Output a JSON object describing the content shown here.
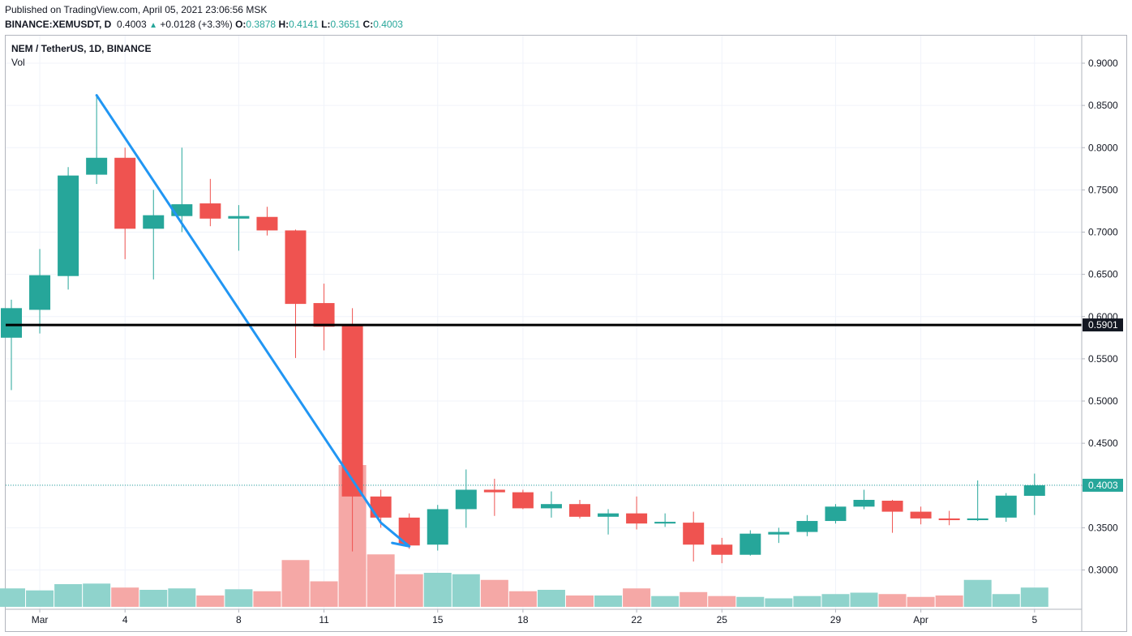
{
  "header": {
    "published": "Published on TradingView.com, April 05, 2021 23:06:56 MSK",
    "symbol": "BINANCE:XEMUSDT, D",
    "last": "0.4003",
    "change": "+0.0128 (+3.3%)",
    "o_label": "O:",
    "o": "0.3878",
    "h_label": "H:",
    "h": "0.4141",
    "l_label": "L:",
    "l": "0.3651",
    "c_label": "C:",
    "c": "0.4003"
  },
  "legend": {
    "series": "NEM / TetherUS, 1D, BINANCE",
    "volume": "Vol"
  },
  "colors": {
    "up": "#26a69a",
    "down": "#ef5350",
    "up_vol": "#8fd3cc",
    "down_vol": "#f5a8a6",
    "trendline": "#2196f3",
    "hline": "#000000",
    "grid": "#f0f3fa"
  },
  "chart_data": {
    "type": "candlestick",
    "ylim": [
      0.26,
      0.92
    ],
    "y_ticks": [
      "0.9000",
      "0.8500",
      "0.8000",
      "0.7500",
      "0.7000",
      "0.6500",
      "0.6000",
      "0.5500",
      "0.5000",
      "0.4500",
      "0.4000",
      "0.3500",
      "0.3000"
    ],
    "x_ticks": [
      {
        "label": "Mar",
        "index": 1
      },
      {
        "label": "4",
        "index": 4
      },
      {
        "label": "8",
        "index": 8
      },
      {
        "label": "11",
        "index": 11
      },
      {
        "label": "15",
        "index": 15
      },
      {
        "label": "18",
        "index": 18
      },
      {
        "label": "22",
        "index": 22
      },
      {
        "label": "25",
        "index": 25
      },
      {
        "label": "29",
        "index": 29
      },
      {
        "label": "Apr",
        "index": 32
      },
      {
        "label": "5",
        "index": 36
      }
    ],
    "candles": [
      {
        "date": "Feb 28",
        "o": 0.575,
        "h": 0.62,
        "l": 0.513,
        "c": 0.61,
        "v": 0.65
      },
      {
        "date": "Mar 1",
        "o": 0.608,
        "h": 0.68,
        "l": 0.58,
        "c": 0.649,
        "v": 0.58
      },
      {
        "date": "Mar 2",
        "o": 0.648,
        "h": 0.777,
        "l": 0.632,
        "c": 0.767,
        "v": 0.8
      },
      {
        "date": "Mar 3",
        "o": 0.768,
        "h": 0.862,
        "l": 0.757,
        "c": 0.788,
        "v": 0.82
      },
      {
        "date": "Mar 4",
        "o": 0.788,
        "h": 0.8,
        "l": 0.668,
        "c": 0.704,
        "v": 0.68
      },
      {
        "date": "Mar 5",
        "o": 0.704,
        "h": 0.75,
        "l": 0.644,
        "c": 0.72,
        "v": 0.6
      },
      {
        "date": "Mar 6",
        "o": 0.719,
        "h": 0.8,
        "l": 0.7,
        "c": 0.733,
        "v": 0.65
      },
      {
        "date": "Mar 7",
        "o": 0.734,
        "h": 0.763,
        "l": 0.707,
        "c": 0.716,
        "v": 0.4
      },
      {
        "date": "Mar 8",
        "o": 0.716,
        "h": 0.732,
        "l": 0.678,
        "c": 0.719,
        "v": 0.62
      },
      {
        "date": "Mar 9",
        "o": 0.718,
        "h": 0.73,
        "l": 0.696,
        "c": 0.702,
        "v": 0.55
      },
      {
        "date": "Mar 10",
        "o": 0.702,
        "h": 0.703,
        "l": 0.551,
        "c": 0.615,
        "v": 1.65
      },
      {
        "date": "Mar 11",
        "o": 0.616,
        "h": 0.639,
        "l": 0.56,
        "c": 0.588,
        "v": 0.9
      },
      {
        "date": "Mar 12",
        "o": 0.59,
        "h": 0.61,
        "l": 0.322,
        "c": 0.387,
        "v": 5.0
      },
      {
        "date": "Mar 13",
        "o": 0.387,
        "h": 0.395,
        "l": 0.35,
        "c": 0.362,
        "v": 1.85
      },
      {
        "date": "Mar 14",
        "o": 0.362,
        "h": 0.367,
        "l": 0.325,
        "c": 0.329,
        "v": 1.15
      },
      {
        "date": "Mar 15",
        "o": 0.33,
        "h": 0.377,
        "l": 0.323,
        "c": 0.372,
        "v": 1.2
      },
      {
        "date": "Mar 16",
        "o": 0.372,
        "h": 0.419,
        "l": 0.35,
        "c": 0.395,
        "v": 1.15
      },
      {
        "date": "Mar 17",
        "o": 0.395,
        "h": 0.408,
        "l": 0.364,
        "c": 0.392,
        "v": 0.95
      },
      {
        "date": "Mar 18",
        "o": 0.392,
        "h": 0.395,
        "l": 0.372,
        "c": 0.373,
        "v": 0.55
      },
      {
        "date": "Mar 19",
        "o": 0.373,
        "h": 0.393,
        "l": 0.362,
        "c": 0.378,
        "v": 0.6
      },
      {
        "date": "Mar 20",
        "o": 0.378,
        "h": 0.383,
        "l": 0.361,
        "c": 0.363,
        "v": 0.4
      },
      {
        "date": "Mar 21",
        "o": 0.363,
        "h": 0.372,
        "l": 0.342,
        "c": 0.367,
        "v": 0.4
      },
      {
        "date": "Mar 22",
        "o": 0.367,
        "h": 0.387,
        "l": 0.348,
        "c": 0.355,
        "v": 0.65
      },
      {
        "date": "Mar 23",
        "o": 0.355,
        "h": 0.367,
        "l": 0.351,
        "c": 0.357,
        "v": 0.38
      },
      {
        "date": "Mar 24",
        "o": 0.356,
        "h": 0.369,
        "l": 0.31,
        "c": 0.33,
        "v": 0.52
      },
      {
        "date": "Mar 25",
        "o": 0.33,
        "h": 0.338,
        "l": 0.308,
        "c": 0.318,
        "v": 0.38
      },
      {
        "date": "Mar 26",
        "o": 0.318,
        "h": 0.347,
        "l": 0.317,
        "c": 0.343,
        "v": 0.35
      },
      {
        "date": "Mar 27",
        "o": 0.342,
        "h": 0.35,
        "l": 0.332,
        "c": 0.345,
        "v": 0.3
      },
      {
        "date": "Mar 28",
        "o": 0.345,
        "h": 0.365,
        "l": 0.34,
        "c": 0.358,
        "v": 0.38
      },
      {
        "date": "Mar 29",
        "o": 0.358,
        "h": 0.378,
        "l": 0.355,
        "c": 0.375,
        "v": 0.45
      },
      {
        "date": "Mar 30",
        "o": 0.375,
        "h": 0.395,
        "l": 0.372,
        "c": 0.383,
        "v": 0.5
      },
      {
        "date": "Mar 31",
        "o": 0.382,
        "h": 0.383,
        "l": 0.344,
        "c": 0.369,
        "v": 0.45
      },
      {
        "date": "Apr 1",
        "o": 0.369,
        "h": 0.375,
        "l": 0.354,
        "c": 0.361,
        "v": 0.35
      },
      {
        "date": "Apr 2",
        "o": 0.361,
        "h": 0.37,
        "l": 0.353,
        "c": 0.359,
        "v": 0.4
      },
      {
        "date": "Apr 3",
        "o": 0.359,
        "h": 0.406,
        "l": 0.358,
        "c": 0.361,
        "v": 0.95
      },
      {
        "date": "Apr 4",
        "o": 0.362,
        "h": 0.391,
        "l": 0.357,
        "c": 0.388,
        "v": 0.45
      },
      {
        "date": "Apr 5",
        "o": 0.3878,
        "h": 0.4141,
        "l": 0.3651,
        "c": 0.4003,
        "v": 0.68
      }
    ],
    "last_price": 0.4003,
    "last_price_label": "0.4003",
    "horizontal_line": {
      "price": 0.5901,
      "label": "0.5901"
    },
    "trendline": {
      "points": [
        {
          "index": 3,
          "price": 0.862
        },
        {
          "index": 13,
          "price": 0.356
        },
        {
          "index": 14,
          "price": 0.328
        },
        {
          "index": 13.4,
          "price": 0.332
        }
      ]
    }
  }
}
